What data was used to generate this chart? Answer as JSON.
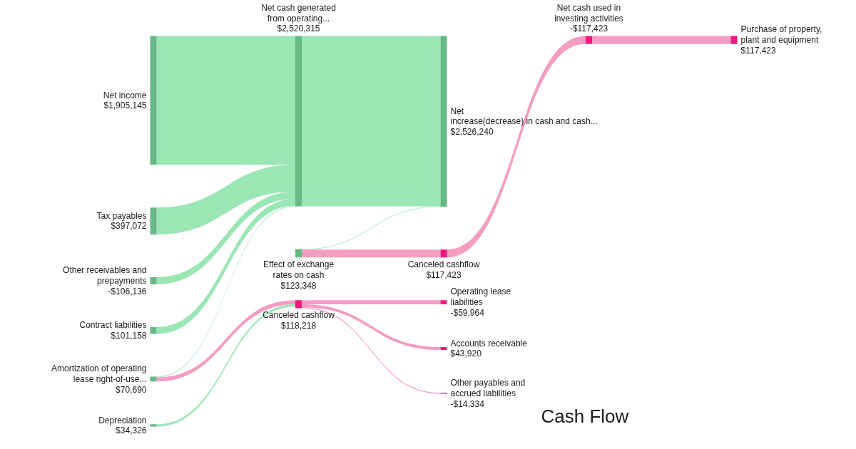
{
  "chart_data": {
    "type": "other",
    "title": "Cash Flow",
    "categories": [
      "Net income",
      "Tax payables",
      "Other receivables and\nprepayments",
      "Contract liabilities",
      "Amortization of operating\nlease right-of-use...",
      "Depreciation",
      "Net cash generated\nfrom operating...",
      "Effect of exchange\nrates on cash",
      "Canceled cashflow",
      "Net\nincrease(decrease) in cash and cash...",
      "Canceled cashflow",
      "Operating lease\nliabilities",
      "Accounts receivable",
      "Other payables and\naccrued liabilities",
      "Net cash used in\ninvesting activities",
      "Purchase of property,\nplant and equipment"
    ],
    "values": [
      1905145,
      397072,
      -106136,
      101158,
      70690,
      34326,
      2520315,
      123348,
      118218,
      2526240,
      117423,
      -59964,
      43920,
      -14334,
      -117423,
      117423
    ],
    "value_labels": [
      "$1,905,145",
      "$397,072",
      "-$106,136",
      "$101,158",
      "$70,690",
      "$34,326",
      "$2,520,315",
      "$123,348",
      "$118,218",
      "$2,526,240",
      "$117,423",
      "-$59,964",
      "$43,920",
      "-$14,334",
      "-$117,423",
      "$117,423"
    ],
    "colors": [
      "#66b884",
      "#66b884",
      "#66b884",
      "#66b884",
      "#66b884",
      "#66b884",
      "#66b884",
      "#66b884",
      "#f0197d",
      "#66b884",
      "#f0197d",
      "#f0197d",
      "#f0197d",
      "#f0197d",
      "#f0197d",
      "#f0197d"
    ],
    "series": [
      {
        "values": [
          null,
          null,
          null,
          null,
          null,
          null,
          null,
          null,
          null,
          null,
          null,
          null,
          null,
          null,
          null,
          null
        ],
        "colors": [
          "#9ae6b4",
          null,
          null,
          null,
          null,
          null,
          "#9ae6b4",
          null,
          null,
          null,
          null,
          null,
          null,
          null,
          null,
          null
        ]
      },
      {
        "values": [
          null,
          null,
          null,
          null,
          null,
          null,
          null,
          null,
          null,
          null,
          null,
          null,
          null,
          null,
          null,
          null
        ],
        "colors": [
          null,
          "#9ae6b4",
          null,
          null,
          null,
          null,
          "#9ae6b4",
          null,
          null,
          null,
          null,
          null,
          null,
          null,
          null,
          null
        ]
      },
      {
        "values": [
          null,
          null,
          null,
          null,
          null,
          null,
          null,
          null,
          null,
          null,
          null,
          null,
          null,
          null,
          null,
          null
        ],
        "colors": [
          null,
          null,
          "#9ae6b4",
          null,
          null,
          null,
          "#9ae6b4",
          null,
          null,
          null,
          null,
          null,
          null,
          null,
          null,
          null
        ]
      },
      {
        "values": [
          null,
          null,
          null,
          null,
          null,
          null,
          null,
          null,
          null,
          null,
          null,
          null,
          null,
          null,
          null,
          null
        ],
        "colors": [
          null,
          null,
          null,
          "#9ae6b4",
          null,
          null,
          "#9ae6b4",
          null,
          null,
          null,
          null,
          null,
          null,
          null,
          null,
          null
        ]
      },
      {
        "values": [
          null,
          null,
          null,
          null,
          null,
          null,
          null,
          null,
          null,
          null,
          null,
          null,
          null,
          null,
          null,
          null
        ],
        "colors": [
          null,
          null,
          null,
          null,
          "#9ae6b4",
          null,
          "#9ae6b4",
          null,
          null,
          null,
          null,
          null,
          null,
          null,
          null,
          null
        ]
      },
      {
        "values": [
          null,
          null,
          null,
          null,
          null,
          null,
          null,
          null,
          null,
          null,
          null,
          null,
          null,
          null,
          null,
          null
        ],
        "colors": [
          null,
          null,
          null,
          null,
          "#f49cc2",
          null,
          null,
          null,
          "#f49cc2",
          null,
          null,
          null,
          null,
          null,
          null,
          null
        ]
      },
      {
        "values": [
          null,
          null,
          null,
          null,
          null,
          null,
          null,
          null,
          null,
          null,
          null,
          null,
          null,
          null,
          null,
          null
        ],
        "colors": [
          null,
          null,
          null,
          null,
          null,
          "#9ae6b4",
          null,
          null,
          "#9ae6b4",
          null,
          null,
          null,
          null,
          null,
          null,
          null
        ]
      },
      {
        "values": [
          null,
          null,
          null,
          null,
          null,
          null,
          null,
          null,
          null,
          null,
          null,
          null,
          null,
          null,
          null,
          null
        ],
        "colors": [
          null,
          null,
          null,
          null,
          null,
          null,
          "#9ae6b4",
          null,
          null,
          "#9ae6b4",
          null,
          null,
          null,
          null,
          null,
          null
        ]
      },
      {
        "values": [
          null,
          null,
          null,
          null,
          null,
          null,
          null,
          null,
          null,
          null,
          null,
          null,
          null,
          null,
          null,
          null
        ],
        "colors": [
          null,
          null,
          null,
          null,
          null,
          null,
          null,
          "#9ae6b4",
          null,
          "#9ae6b4",
          null,
          null,
          null,
          null,
          null,
          null
        ]
      },
      {
        "values": [
          null,
          null,
          null,
          null,
          null,
          null,
          null,
          null,
          null,
          null,
          null,
          null,
          null,
          null,
          null,
          null
        ],
        "colors": [
          null,
          null,
          null,
          null,
          null,
          null,
          null,
          "#f49cc2",
          null,
          null,
          "#f49cc2",
          null,
          null,
          null,
          null,
          null
        ]
      },
      {
        "values": [
          null,
          null,
          null,
          null,
          null,
          null,
          null,
          null,
          null,
          null,
          null,
          null,
          null,
          null,
          null,
          null
        ],
        "colors": [
          null,
          null,
          null,
          null,
          null,
          null,
          null,
          null,
          "#f49cc2",
          null,
          null,
          "#f49cc2",
          null,
          null,
          null,
          null
        ]
      },
      {
        "values": [
          null,
          null,
          null,
          null,
          null,
          null,
          null,
          null,
          null,
          null,
          null,
          null,
          null,
          null,
          null,
          null
        ],
        "colors": [
          null,
          null,
          null,
          null,
          null,
          null,
          null,
          null,
          "#f49cc2",
          null,
          null,
          null,
          "#f49cc2",
          null,
          null,
          null
        ]
      },
      {
        "values": [
          null,
          null,
          null,
          null,
          null,
          null,
          null,
          null,
          null,
          null,
          null,
          null,
          null,
          null,
          null,
          null
        ],
        "colors": [
          null,
          null,
          null,
          null,
          null,
          null,
          null,
          null,
          "#f49cc2",
          null,
          null,
          null,
          null,
          "#f49cc2",
          null,
          null
        ]
      },
      {
        "values": [
          null,
          null,
          null,
          null,
          null,
          null,
          null,
          null,
          null,
          null,
          null,
          null,
          null,
          null,
          null,
          null
        ],
        "colors": [
          null,
          null,
          null,
          null,
          null,
          null,
          null,
          null,
          null,
          null,
          "#f49cc2",
          null,
          null,
          null,
          "#f49cc2",
          null
        ]
      },
      {
        "values": [
          null,
          null,
          null,
          null,
          null,
          null,
          null,
          null,
          null,
          null,
          null,
          null,
          null,
          null,
          null,
          null
        ],
        "colors": [
          null,
          null,
          null,
          null,
          null,
          null,
          null,
          null,
          null,
          null,
          null,
          null,
          null,
          null,
          "#f49cc2",
          "#f49cc2"
        ]
      }
    ]
  }
}
